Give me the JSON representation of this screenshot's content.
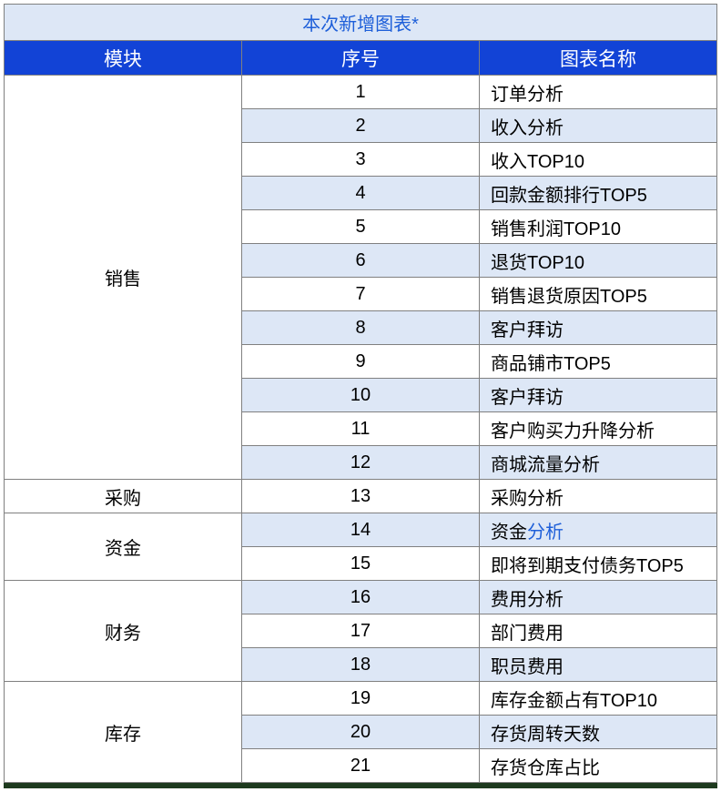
{
  "title": "本次新增图表*",
  "headers": {
    "module": "模块",
    "num": "序号",
    "name": "图表名称"
  },
  "colors": {
    "title_bg": "#dde7f6",
    "title_text": "#1e5fd9",
    "header_bg": "#1243d6",
    "header_text": "#ffffff",
    "row_odd": "#ffffff",
    "row_even": "#dde7f6",
    "border": "#808080",
    "link": "#1e5fd9",
    "bottom": "#1d3a1e"
  },
  "column_widths": {
    "module": 218,
    "num": 148,
    "name": 418
  },
  "modules": [
    {
      "label": "销售",
      "rowspan": 12
    },
    {
      "label": "采购",
      "rowspan": 1
    },
    {
      "label": "资金",
      "rowspan": 2
    },
    {
      "label": "财务",
      "rowspan": 3
    },
    {
      "label": "库存",
      "rowspan": 3
    }
  ],
  "rows": [
    {
      "num": "1",
      "name": "订单分析"
    },
    {
      "num": "2",
      "name": "收入分析"
    },
    {
      "num": "3",
      "name": "收入TOP10"
    },
    {
      "num": "4",
      "name": "回款金额排行TOP5"
    },
    {
      "num": "5",
      "name": "销售利润TOP10"
    },
    {
      "num": "6",
      "name": "退货TOP10"
    },
    {
      "num": "7",
      "name": "销售退货原因TOP5"
    },
    {
      "num": "8",
      "name": "客户拜访"
    },
    {
      "num": "9",
      "name": "商品铺市TOP5"
    },
    {
      "num": "10",
      "name": "客户拜访"
    },
    {
      "num": "11",
      "name": "客户购买力升降分析"
    },
    {
      "num": "12",
      "name": "商城流量分析"
    },
    {
      "num": "13",
      "name": "采购分析"
    },
    {
      "num": "14",
      "name_prefix": "资金",
      "name_link": "分析"
    },
    {
      "num": "15",
      "name": "即将到期支付债务TOP5"
    },
    {
      "num": "16",
      "name": "费用分析"
    },
    {
      "num": "17",
      "name": "部门费用"
    },
    {
      "num": "18",
      "name": "职员费用"
    },
    {
      "num": "19",
      "name": "库存金额占有TOP10"
    },
    {
      "num": "20",
      "name": "存货周转天数"
    },
    {
      "num": "21",
      "name": "存货仓库占比"
    }
  ]
}
